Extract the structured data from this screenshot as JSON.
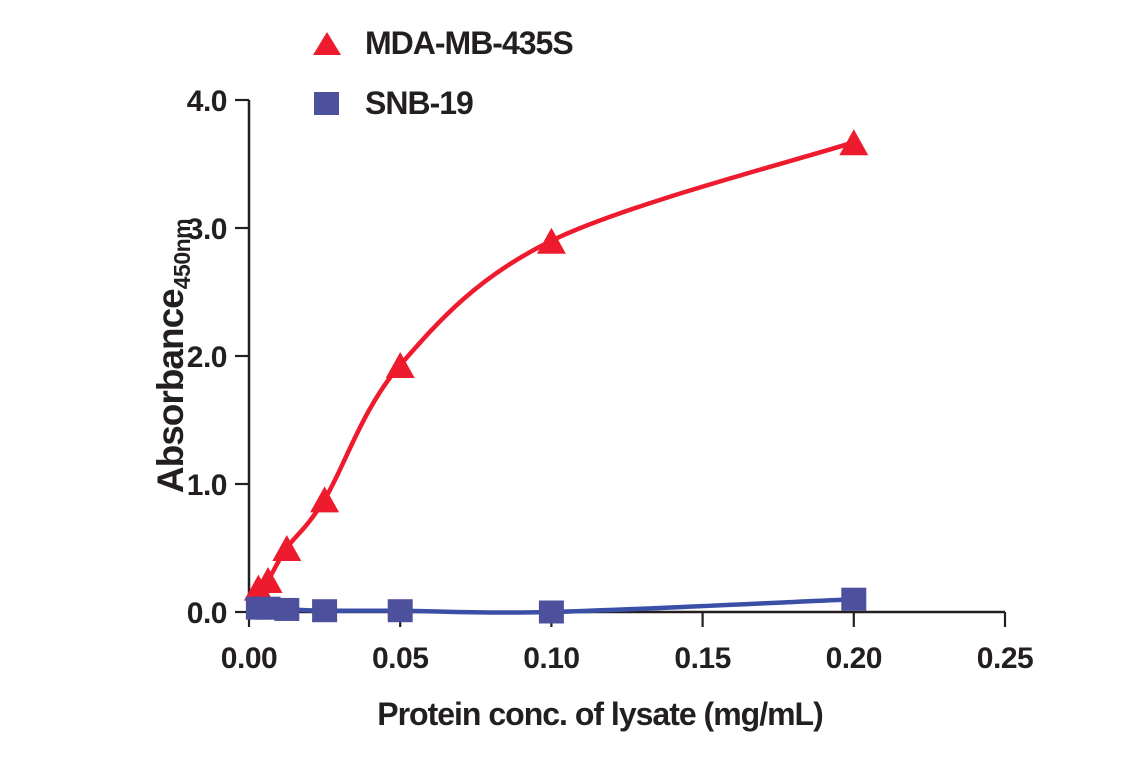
{
  "figure": {
    "background": "#ffffff",
    "text_color": "#231f20",
    "axis_color": "#231f20"
  },
  "chart_data": {
    "type": "scatter",
    "title": "",
    "xlabel": "Protein conc. of lysate (mg/mL)",
    "ylabel": "Absorbance 450nm",
    "ylabel_main": "Absorbance",
    "ylabel_sub": "450nm",
    "xlim": [
      0,
      0.25
    ],
    "ylim": [
      0,
      4.0
    ],
    "grid": false,
    "legend_position": "top-left",
    "x_ticks": [
      {
        "value": 0.0,
        "label": "0.00"
      },
      {
        "value": 0.05,
        "label": "0.05"
      },
      {
        "value": 0.1,
        "label": "0.10"
      },
      {
        "value": 0.15,
        "label": "0.15"
      },
      {
        "value": 0.2,
        "label": "0.20"
      },
      {
        "value": 0.25,
        "label": "0.25"
      }
    ],
    "y_ticks": [
      {
        "value": 0.0,
        "label": "0.0"
      },
      {
        "value": 1.0,
        "label": "1.0"
      },
      {
        "value": 2.0,
        "label": "2.0"
      },
      {
        "value": 3.0,
        "label": "3.0"
      },
      {
        "value": 4.0,
        "label": "4.0"
      }
    ],
    "series": [
      {
        "name": "MDA-MB-435S",
        "marker": "triangle",
        "marker_color": "#ed1b2d",
        "line_color": "#ed1b2d",
        "x": [
          0.0031,
          0.0063,
          0.0125,
          0.025,
          0.05,
          0.1,
          0.2
        ],
        "y": [
          0.19,
          0.25,
          0.5,
          0.88,
          1.93,
          2.9,
          3.67
        ],
        "curve_start": {
          "x": 0.0008,
          "y": 0.04
        }
      },
      {
        "name": "SNB-19",
        "marker": "square",
        "marker_color": "#4d519d",
        "line_color": "#3a50a6",
        "x": [
          0.0031,
          0.0063,
          0.0125,
          0.025,
          0.05,
          0.1,
          0.2
        ],
        "y": [
          0.03,
          0.03,
          0.02,
          0.01,
          0.01,
          0.0,
          0.1
        ],
        "curve_start": {
          "x": 0.0,
          "y": 0.02
        }
      }
    ]
  }
}
